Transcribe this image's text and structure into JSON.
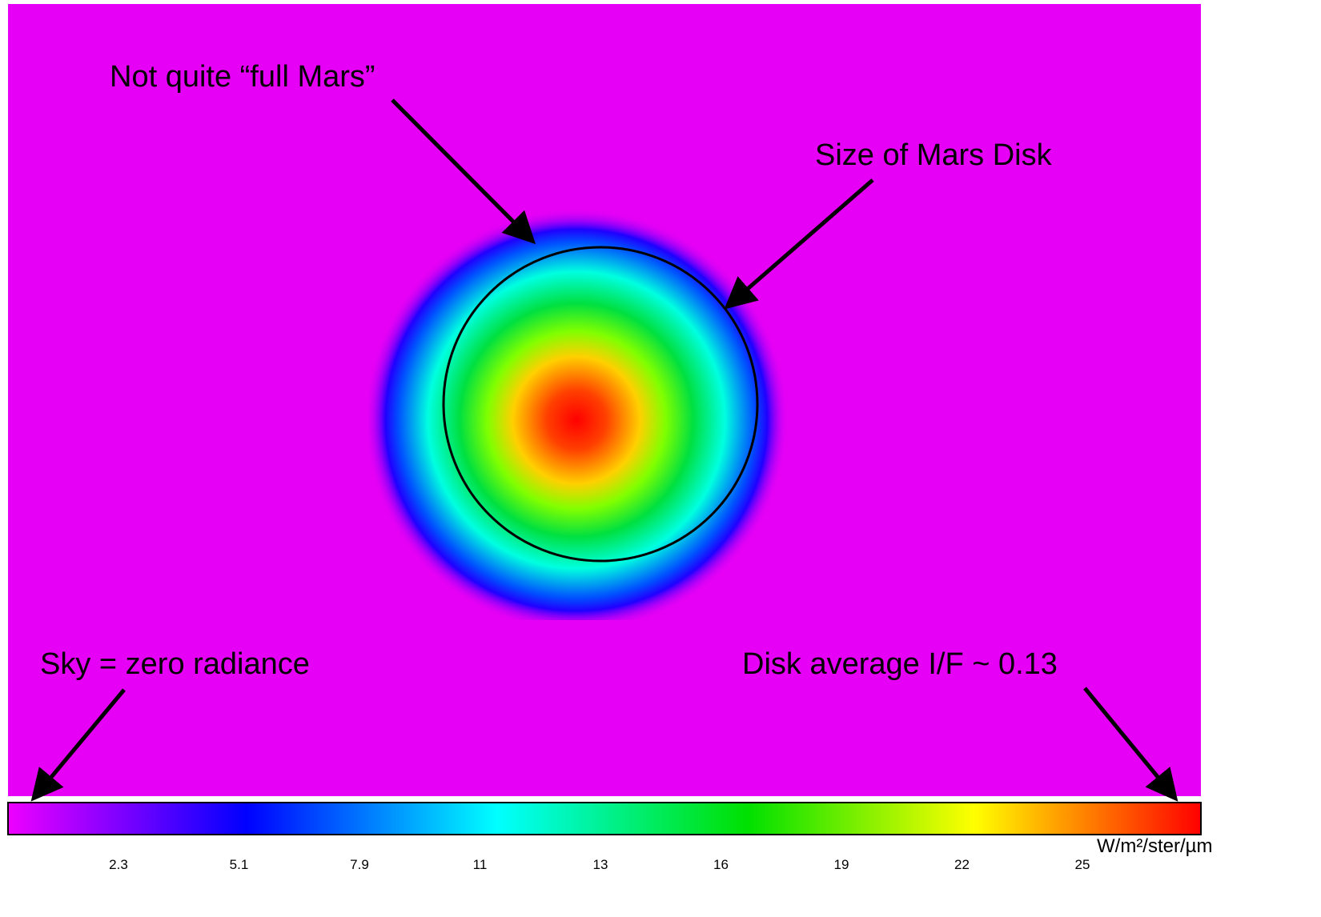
{
  "annotations": [
    "Not quite “full Mars”",
    "Size of Mars Disk",
    "Sky = zero radiance",
    "Disk average I/F ~ 0.13"
  ],
  "colorbar": {
    "ticks": [
      "2.3",
      "5.1",
      "7.9",
      "11",
      "13",
      "16",
      "19",
      "22",
      "25"
    ],
    "unit": "W/m²/ster/µm"
  }
}
